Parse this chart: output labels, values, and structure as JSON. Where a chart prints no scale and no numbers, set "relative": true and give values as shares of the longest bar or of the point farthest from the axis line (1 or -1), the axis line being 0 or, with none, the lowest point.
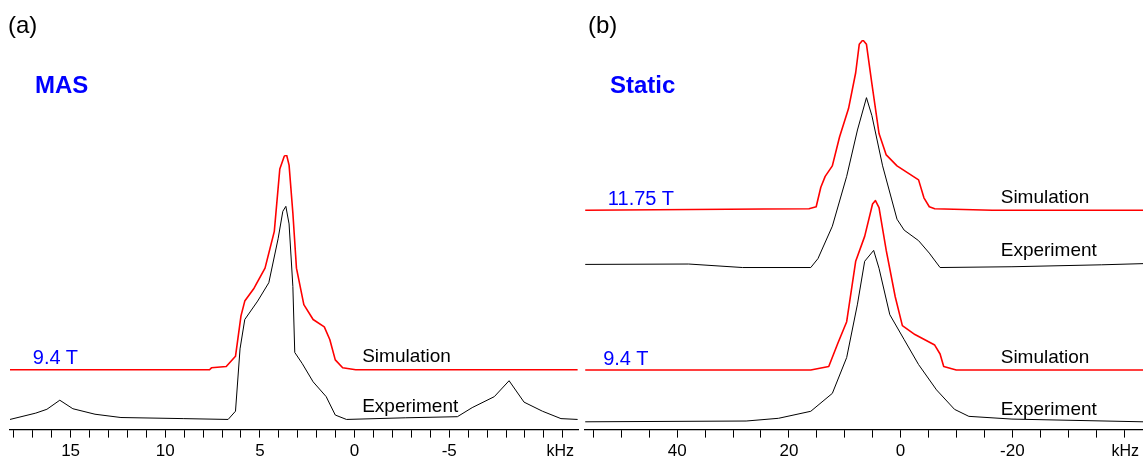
{
  "chart_data": [
    {
      "type": "line",
      "title": "(a)",
      "subtitle": "MAS",
      "xlabel": "kHz",
      "relative": true,
      "xlim": [
        18.2,
        -11.8
      ],
      "xticks": [
        {
          "value": 18,
          "label": null
        },
        {
          "value": 17,
          "label": null
        },
        {
          "value": 16,
          "label": null
        },
        15,
        {
          "value": 14,
          "label": null
        },
        {
          "value": 13,
          "label": null
        },
        {
          "value": 12,
          "label": null
        },
        {
          "value": 11,
          "label": null
        },
        10,
        {
          "value": 9,
          "label": null
        },
        {
          "value": 8,
          "label": null
        },
        {
          "value": 7,
          "label": null
        },
        {
          "value": 6,
          "label": null
        },
        5,
        {
          "value": 4,
          "label": null
        },
        {
          "value": 3,
          "label": null
        },
        {
          "value": 2,
          "label": null
        },
        {
          "value": 1,
          "label": null
        },
        0,
        {
          "value": -1,
          "label": null
        },
        {
          "value": -2,
          "label": null
        },
        {
          "value": -3,
          "label": null
        },
        {
          "value": -4,
          "label": null
        },
        -5,
        {
          "value": -6,
          "label": null
        },
        {
          "value": -7,
          "label": null
        },
        {
          "value": -8,
          "label": null
        },
        {
          "value": -9,
          "label": null
        },
        {
          "value": -10,
          "label": null
        },
        {
          "value": -11,
          "label": null
        }
      ],
      "series": [
        {
          "name": "Simulation",
          "color": "#ff0000",
          "x": [
            18.2,
            7.66,
            7.56,
            6.78,
            6.29,
            6.0,
            5.8,
            5.31,
            4.73,
            4.24,
            3.95,
            3.71,
            3.59,
            3.46,
            3.26,
            3.07,
            2.68,
            2.19,
            1.6,
            1.31,
            1.02,
            0.63,
            -0.06,
            -11.78
          ],
          "values": [
            0.218,
            0.218,
            0.225,
            0.23,
            0.267,
            0.414,
            0.468,
            0.515,
            0.588,
            0.722,
            0.949,
            0.996,
            1.0,
            0.963,
            0.789,
            0.588,
            0.455,
            0.401,
            0.374,
            0.328,
            0.254,
            0.225,
            0.218,
            0.218
          ]
        },
        {
          "name": "Experiment",
          "color": "#000000",
          "x": [
            18.2,
            16.84,
            16.25,
            15.57,
            14.88,
            13.71,
            12.34,
            9.02,
            6.68,
            6.29,
            6.05,
            5.8,
            5.12,
            4.53,
            4.04,
            3.79,
            3.63,
            3.46,
            3.26,
            3.16,
            2.77,
            2.19,
            1.5,
            1.02,
            0.43,
            -2.7,
            -5.43,
            -6.21,
            -7.38,
            -8.16,
            -8.95,
            -9.92,
            -10.9,
            -11.78
          ],
          "values": [
            0.037,
            0.06,
            0.074,
            0.107,
            0.076,
            0.056,
            0.044,
            0.04,
            0.037,
            0.067,
            0.294,
            0.401,
            0.468,
            0.535,
            0.695,
            0.795,
            0.813,
            0.749,
            0.521,
            0.281,
            0.241,
            0.174,
            0.12,
            0.053,
            0.037,
            0.043,
            0.047,
            0.08,
            0.12,
            0.178,
            0.1,
            0.067,
            0.04,
            0.037
          ]
        }
      ],
      "annotations": [
        {
          "text": "9.4 T",
          "x": 15.8,
          "y": 0.218
        }
      ]
    },
    {
      "type": "line",
      "title": "(b)",
      "subtitle": "Static",
      "xlabel": "kHz",
      "relative": true,
      "xlim": [
        56.5,
        -43.4
      ],
      "xticks": [
        {
          "value": 55,
          "label": null
        },
        {
          "value": 50,
          "label": null
        },
        {
          "value": 45,
          "label": null
        },
        40,
        {
          "value": 35,
          "label": null
        },
        {
          "value": 30,
          "label": null
        },
        {
          "value": 25,
          "label": null
        },
        20,
        {
          "value": 15,
          "label": null
        },
        {
          "value": 10,
          "label": null
        },
        {
          "value": 5,
          "label": null
        },
        0,
        {
          "value": -5,
          "label": null
        },
        {
          "value": -10,
          "label": null
        },
        {
          "value": -15,
          "label": null
        },
        -20,
        {
          "value": -25,
          "label": null
        },
        {
          "value": -30,
          "label": null
        },
        {
          "value": -35,
          "label": null
        },
        {
          "value": -40,
          "label": null
        }
      ],
      "series": [
        {
          "name": "Simulation",
          "color": "#ff0000",
          "x": [
            56.46,
            16.4,
            15.11,
            14.28,
            13.5,
            12.22,
            10.93,
            9.32,
            8.04,
            7.4,
            6.75,
            6.11,
            5.14,
            3.86,
            2.57,
            0.64,
            -1.29,
            -3.22,
            -4.18,
            -5.14,
            -6.11,
            -16.4,
            -43.4
          ],
          "values": [
            0.563,
            0.567,
            0.572,
            0.622,
            0.65,
            0.677,
            0.751,
            0.824,
            0.916,
            0.989,
            1.0,
            0.989,
            0.888,
            0.76,
            0.705,
            0.677,
            0.659,
            0.641,
            0.595,
            0.572,
            0.567,
            0.563,
            0.563
          ]
        },
        {
          "name": "Experiment",
          "color": "#000000",
          "x": [
            56.46,
            37.94,
            28.3,
            16.08,
            14.79,
            12.22,
            9.65,
            7.72,
            6.11,
            5.14,
            3.22,
            0.64,
            -0.64,
            -3.22,
            -5.14,
            -7.07,
            -19.94,
            -36.0,
            -43.4
          ],
          "values": [
            0.424,
            0.425,
            0.416,
            0.416,
            0.439,
            0.522,
            0.65,
            0.769,
            0.852,
            0.806,
            0.677,
            0.54,
            0.512,
            0.485,
            0.453,
            0.416,
            0.418,
            0.423,
            0.426
          ]
        },
        {
          "name": "Simulation",
          "color": "#ff0000",
          "x": [
            56.46,
            16.08,
            12.86,
            11.25,
            9.65,
            8.04,
            6.43,
            5.02,
            4.5,
            3.86,
            2.57,
            0.96,
            -0.32,
            -2.57,
            -6.11,
            -7.07,
            -7.72,
            -9.97,
            -43.4
          ],
          "values": [
            0.153,
            0.153,
            0.162,
            0.221,
            0.277,
            0.432,
            0.496,
            0.579,
            0.588,
            0.57,
            0.46,
            0.341,
            0.267,
            0.244,
            0.217,
            0.194,
            0.162,
            0.153,
            0.153
          ]
        },
        {
          "name": "Experiment",
          "color": "#000000",
          "x": [
            56.46,
            27.65,
            21.86,
            16.08,
            12.22,
            9.65,
            7.72,
            6.43,
            4.82,
            3.86,
            1.93,
            -0.64,
            -3.22,
            -6.43,
            -9.65,
            -12.22,
            -19.94,
            -43.4
          ],
          "values": [
            0.02,
            0.022,
            0.029,
            0.047,
            0.093,
            0.185,
            0.322,
            0.432,
            0.46,
            0.414,
            0.295,
            0.231,
            0.167,
            0.102,
            0.052,
            0.034,
            0.027,
            0.02
          ]
        }
      ],
      "annotations": [
        {
          "text": "11.75 T",
          "x": 46.5,
          "y": 0.563
        },
        {
          "text": "9.4 T",
          "x": 49.2,
          "y": 0.153
        }
      ]
    }
  ]
}
